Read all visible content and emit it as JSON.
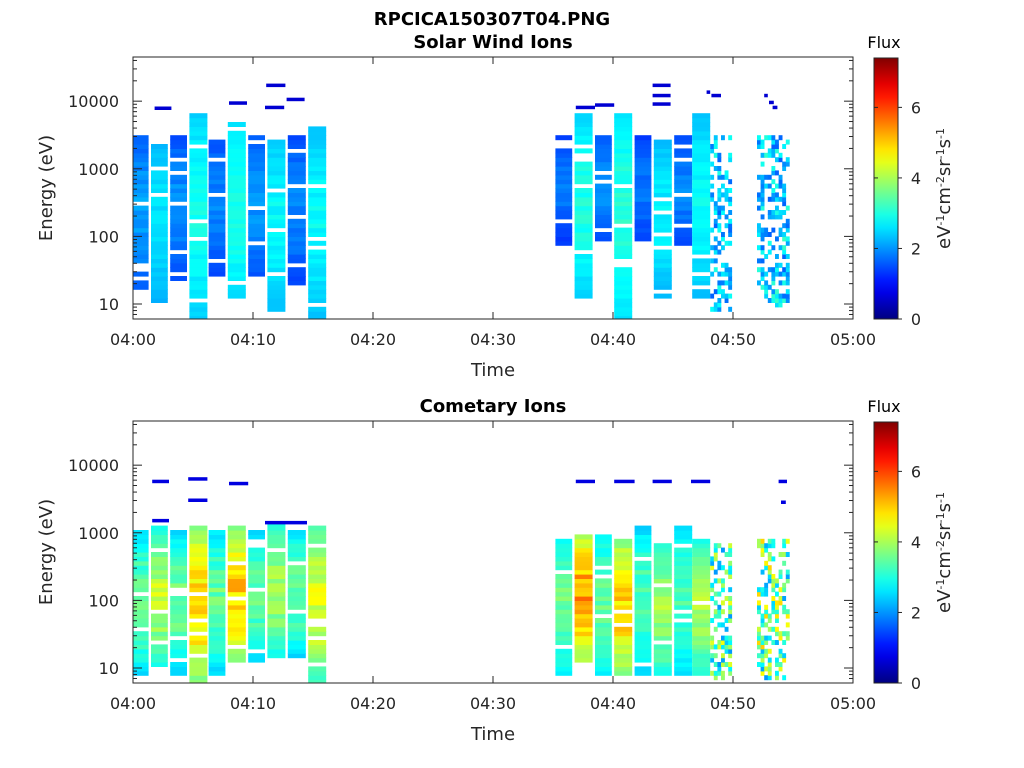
{
  "figure_title": "RPCICA150307T04.PNG",
  "colors": {
    "axis": "#262626",
    "colormap": "jet"
  },
  "chart_data": [
    {
      "type": "heatmap",
      "title": "Solar Wind Ions",
      "xlabel": "Time",
      "ylabel": "Energy (eV)",
      "x_ticks": [
        "04:00",
        "04:10",
        "04:20",
        "04:30",
        "04:40",
        "04:50",
        "05:00"
      ],
      "x_tick_minutes": [
        0,
        10,
        20,
        30,
        40,
        50,
        60
      ],
      "y_scale": "log",
      "y_ticks": [
        "10",
        "100",
        "1000",
        "10000"
      ],
      "y_tick_values": [
        10,
        100,
        1000,
        10000
      ],
      "ylim": [
        6,
        45000
      ],
      "xlim_minutes": [
        0,
        60
      ],
      "colorbar": {
        "label_title": "Flux",
        "label_base": "eV",
        "label_tail": "cm",
        "label_units": [
          "-1",
          "-2",
          "sr",
          "-1",
          "s",
          "-1"
        ],
        "ticks": [
          "0",
          "2",
          "4",
          "6"
        ],
        "tick_values": [
          0,
          2,
          4,
          6
        ],
        "range": [
          0,
          7.4
        ]
      },
      "grid": false,
      "columns": [
        {
          "t": 0.0,
          "w": 1.3,
          "emin": 18,
          "emax": 3000,
          "vlo": 1.3,
          "vhi": 2.1
        },
        {
          "t": 1.5,
          "w": 1.4,
          "emin": 11,
          "emax": 3000,
          "vlo": 2.0,
          "vhi": 2.6
        },
        {
          "t": 3.1,
          "w": 1.4,
          "emin": 24,
          "emax": 3000,
          "vlo": 1.2,
          "vhi": 2.0
        },
        {
          "t": 4.7,
          "w": 1.5,
          "emin": 6,
          "emax": 6500,
          "vlo": 2.2,
          "vhi": 2.9
        },
        {
          "t": 6.3,
          "w": 1.4,
          "emin": 30,
          "emax": 3000,
          "vlo": 1.2,
          "vhi": 1.9
        },
        {
          "t": 7.9,
          "w": 1.5,
          "emin": 13,
          "emax": 5000,
          "vlo": 2.3,
          "vhi": 3.0
        },
        {
          "t": 9.6,
          "w": 1.4,
          "emin": 25,
          "emax": 3000,
          "vlo": 1.3,
          "vhi": 2.0
        },
        {
          "t": 11.2,
          "w": 1.5,
          "emin": 8,
          "emax": 3000,
          "vlo": 2.1,
          "vhi": 2.8
        },
        {
          "t": 12.9,
          "w": 1.5,
          "emin": 22,
          "emax": 3000,
          "vlo": 1.2,
          "vhi": 1.9
        },
        {
          "t": 14.6,
          "w": 1.5,
          "emin": 6,
          "emax": 4000,
          "vlo": 2.1,
          "vhi": 2.8
        },
        {
          "t": 35.2,
          "w": 1.4,
          "emin": 80,
          "emax": 3000,
          "vlo": 1.1,
          "vhi": 1.8
        },
        {
          "t": 36.8,
          "w": 1.5,
          "emin": 13,
          "emax": 6500,
          "vlo": 2.2,
          "vhi": 3.0
        },
        {
          "t": 38.5,
          "w": 1.4,
          "emin": 90,
          "emax": 3000,
          "vlo": 1.3,
          "vhi": 2.0
        },
        {
          "t": 40.1,
          "w": 1.5,
          "emin": 6,
          "emax": 6500,
          "vlo": 2.3,
          "vhi": 3.1
        },
        {
          "t": 41.8,
          "w": 1.4,
          "emin": 80,
          "emax": 3000,
          "vlo": 1.1,
          "vhi": 1.8
        },
        {
          "t": 43.4,
          "w": 1.5,
          "emin": 13,
          "emax": 3000,
          "vlo": 2.0,
          "vhi": 2.7
        },
        {
          "t": 45.1,
          "w": 1.5,
          "emin": 80,
          "emax": 3000,
          "vlo": 1.2,
          "vhi": 1.9
        },
        {
          "t": 46.6,
          "w": 1.5,
          "emin": 13,
          "emax": 6500,
          "vlo": 2.1,
          "vhi": 2.8
        }
      ],
      "sparse_regions": [
        {
          "t0": 48.1,
          "t1": 50.0,
          "emin": 8,
          "emax": 3000,
          "vlo": 1.6,
          "vhi": 3.0
        },
        {
          "t0": 52.0,
          "t1": 54.6,
          "emin": 10,
          "emax": 3000,
          "vlo": 1.6,
          "vhi": 3.2
        }
      ],
      "isolated_lines": [
        {
          "t0": 1.8,
          "t1": 3.2,
          "e": 7800,
          "v": 0.6
        },
        {
          "t0": 8.0,
          "t1": 9.5,
          "e": 9300,
          "v": 0.6
        },
        {
          "t0": 11.0,
          "t1": 12.6,
          "e": 8000,
          "v": 0.6
        },
        {
          "t0": 11.1,
          "t1": 12.7,
          "e": 17000,
          "v": 0.6
        },
        {
          "t0": 12.8,
          "t1": 14.3,
          "e": 10500,
          "v": 0.6
        },
        {
          "t0": 36.9,
          "t1": 38.5,
          "e": 8000,
          "v": 0.6
        },
        {
          "t0": 38.5,
          "t1": 40.1,
          "e": 8700,
          "v": 0.6
        },
        {
          "t0": 43.3,
          "t1": 44.8,
          "e": 17000,
          "v": 0.6
        },
        {
          "t0": 43.3,
          "t1": 44.8,
          "e": 12000,
          "v": 0.6
        },
        {
          "t0": 43.3,
          "t1": 44.8,
          "e": 9000,
          "v": 0.6
        },
        {
          "t0": 47.8,
          "t1": 48.1,
          "e": 13500,
          "v": 0.6
        },
        {
          "t0": 48.2,
          "t1": 49.0,
          "e": 12000,
          "v": 0.6
        },
        {
          "t0": 52.6,
          "t1": 52.9,
          "e": 12000,
          "v": 0.6
        },
        {
          "t0": 53.0,
          "t1": 53.4,
          "e": 9500,
          "v": 0.6
        },
        {
          "t0": 53.3,
          "t1": 53.7,
          "e": 8000,
          "v": 0.6
        }
      ],
      "seed": 7
    },
    {
      "type": "heatmap",
      "title": "Cometary Ions",
      "xlabel": "Time",
      "ylabel": "Energy (eV)",
      "x_ticks": [
        "04:00",
        "04:10",
        "04:20",
        "04:30",
        "04:40",
        "04:50",
        "05:00"
      ],
      "x_tick_minutes": [
        0,
        10,
        20,
        30,
        40,
        50,
        60
      ],
      "y_scale": "log",
      "y_ticks": [
        "10",
        "100",
        "1000",
        "10000"
      ],
      "y_tick_values": [
        10,
        100,
        1000,
        10000
      ],
      "ylim": [
        6,
        45000
      ],
      "xlim_minutes": [
        0,
        60
      ],
      "colorbar": {
        "label_title": "Flux",
        "label_base": "eV",
        "label_tail": "cm",
        "label_units": [
          "-1",
          "-2",
          "sr",
          "-1",
          "s",
          "-1"
        ],
        "ticks": [
          "0",
          "2",
          "4",
          "6"
        ],
        "tick_values": [
          0,
          2,
          4,
          6
        ],
        "range": [
          0,
          7.4
        ]
      },
      "grid": false,
      "columns": [
        {
          "t": 0.0,
          "w": 1.3,
          "emin": 8,
          "emax": 950,
          "vlo": 2.0,
          "vhi": 3.6
        },
        {
          "t": 1.5,
          "w": 1.4,
          "emin": 11,
          "emax": 1100,
          "vlo": 2.4,
          "vhi": 4.2
        },
        {
          "t": 3.1,
          "w": 1.4,
          "emin": 9,
          "emax": 1000,
          "vlo": 2.0,
          "vhi": 3.6
        },
        {
          "t": 4.7,
          "w": 1.5,
          "emin": 6,
          "emax": 1200,
          "vlo": 3.0,
          "vhi": 5.0
        },
        {
          "t": 6.3,
          "w": 1.4,
          "emin": 9,
          "emax": 1000,
          "vlo": 2.0,
          "vhi": 3.6
        },
        {
          "t": 7.9,
          "w": 1.5,
          "emin": 13,
          "emax": 1100,
          "vlo": 3.0,
          "vhi": 5.0
        },
        {
          "t": 9.6,
          "w": 1.4,
          "emin": 13,
          "emax": 1000,
          "vlo": 2.0,
          "vhi": 3.6
        },
        {
          "t": 11.2,
          "w": 1.5,
          "emin": 15,
          "emax": 1300,
          "vlo": 2.4,
          "vhi": 4.0
        },
        {
          "t": 12.9,
          "w": 1.5,
          "emin": 15,
          "emax": 1000,
          "vlo": 2.0,
          "vhi": 3.6
        },
        {
          "t": 14.6,
          "w": 1.5,
          "emin": 6,
          "emax": 1200,
          "vlo": 2.6,
          "vhi": 4.4
        },
        {
          "t": 35.2,
          "w": 1.4,
          "emin": 8,
          "emax": 800,
          "vlo": 2.2,
          "vhi": 3.6
        },
        {
          "t": 36.8,
          "w": 1.5,
          "emin": 13,
          "emax": 900,
          "vlo": 3.2,
          "vhi": 5.4
        },
        {
          "t": 38.5,
          "w": 1.4,
          "emin": 8,
          "emax": 850,
          "vlo": 2.2,
          "vhi": 3.6
        },
        {
          "t": 40.1,
          "w": 1.5,
          "emin": 8,
          "emax": 800,
          "vlo": 3.0,
          "vhi": 5.0
        },
        {
          "t": 41.8,
          "w": 1.4,
          "emin": 8,
          "emax": 1100,
          "vlo": 2.0,
          "vhi": 3.4
        },
        {
          "t": 43.4,
          "w": 1.5,
          "emin": 8,
          "emax": 700,
          "vlo": 2.4,
          "vhi": 4.0
        },
        {
          "t": 45.1,
          "w": 1.5,
          "emin": 8,
          "emax": 1100,
          "vlo": 2.0,
          "vhi": 3.4
        },
        {
          "t": 46.6,
          "w": 1.5,
          "emin": 8,
          "emax": 800,
          "vlo": 2.4,
          "vhi": 4.0
        }
      ],
      "sparse_regions": [
        {
          "t0": 48.1,
          "t1": 50.0,
          "emin": 7,
          "emax": 700,
          "vlo": 2.0,
          "vhi": 4.6
        },
        {
          "t0": 52.0,
          "t1": 54.6,
          "emin": 7,
          "emax": 800,
          "vlo": 2.0,
          "vhi": 5.0
        }
      ],
      "isolated_lines": [
        {
          "t0": 1.6,
          "t1": 3.0,
          "e": 5700,
          "v": 0.7
        },
        {
          "t0": 4.6,
          "t1": 6.2,
          "e": 6200,
          "v": 0.7
        },
        {
          "t0": 4.6,
          "t1": 6.2,
          "e": 3000,
          "v": 0.7
        },
        {
          "t0": 8.0,
          "t1": 9.6,
          "e": 5300,
          "v": 0.7
        },
        {
          "t0": 1.6,
          "t1": 3.0,
          "e": 1500,
          "v": 0.7
        },
        {
          "t0": 11.0,
          "t1": 14.5,
          "e": 1400,
          "v": 0.7
        },
        {
          "t0": 36.9,
          "t1": 38.5,
          "e": 5700,
          "v": 0.7
        },
        {
          "t0": 40.1,
          "t1": 41.8,
          "e": 5700,
          "v": 0.7
        },
        {
          "t0": 43.3,
          "t1": 44.9,
          "e": 5700,
          "v": 0.7
        },
        {
          "t0": 46.5,
          "t1": 48.1,
          "e": 5700,
          "v": 0.7
        },
        {
          "t0": 53.8,
          "t1": 54.5,
          "e": 5700,
          "v": 0.7
        },
        {
          "t0": 54.0,
          "t1": 54.4,
          "e": 2800,
          "v": 0.7
        }
      ],
      "seed": 21
    }
  ]
}
